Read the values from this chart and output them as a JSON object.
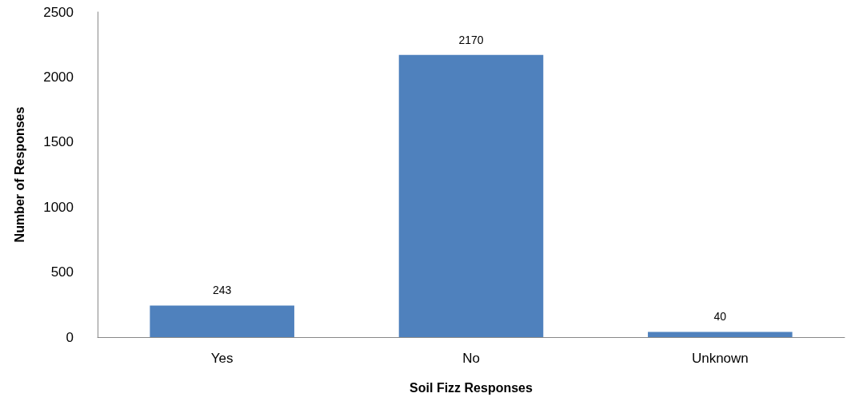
{
  "chart_data": {
    "type": "bar",
    "xlabel": "Soil Fizz Responses",
    "ylabel": "Number of Responses",
    "categories": [
      "Yes",
      "No",
      "Unknown"
    ],
    "values": [
      243,
      2170,
      40
    ],
    "color": "#4f81bd",
    "ylim": [
      0,
      2500
    ],
    "yticks": [
      0,
      500,
      1000,
      1500,
      2000,
      2500
    ],
    "grid": false,
    "data_labels": true
  }
}
